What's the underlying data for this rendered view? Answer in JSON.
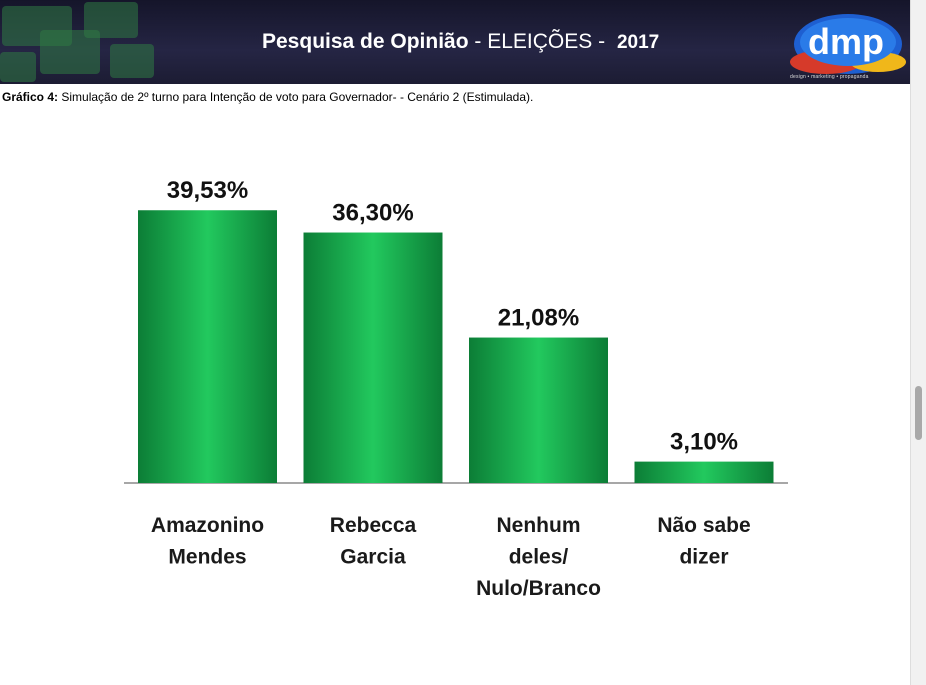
{
  "header": {
    "title_bold": "Pesquisa de Opinião",
    "title_rest": " - ELEIÇÕES - ",
    "year": "2017",
    "logo_text": "dmp",
    "logo_tagline": "design • marketing • propaganda"
  },
  "caption": {
    "label": "Gráfico 4:",
    "text": " Simulação de 2º turno para Intenção de voto para Governador- - Cenário 2 (Estimulada)."
  },
  "chart_data": {
    "type": "bar",
    "categories": [
      "Amazonino Mendes",
      "Rebecca Garcia",
      "Nenhum deles/ Nulo/Branco",
      "Não sabe dizer"
    ],
    "category_lines": [
      [
        "Amazonino",
        "Mendes"
      ],
      [
        "Rebecca",
        "Garcia"
      ],
      [
        "Nenhum",
        "deles/",
        "Nulo/Branco"
      ],
      [
        "Não sabe",
        "dizer"
      ]
    ],
    "values": [
      39.53,
      36.3,
      21.08,
      3.1
    ],
    "data_labels": [
      "39,53%",
      "36,30%",
      "21,08%",
      "3,10%"
    ],
    "ylim": [
      0,
      40
    ],
    "grid": false,
    "legend": "none",
    "bar_color": "#1fc25a",
    "bar_color_dark": "#0c7d36"
  }
}
